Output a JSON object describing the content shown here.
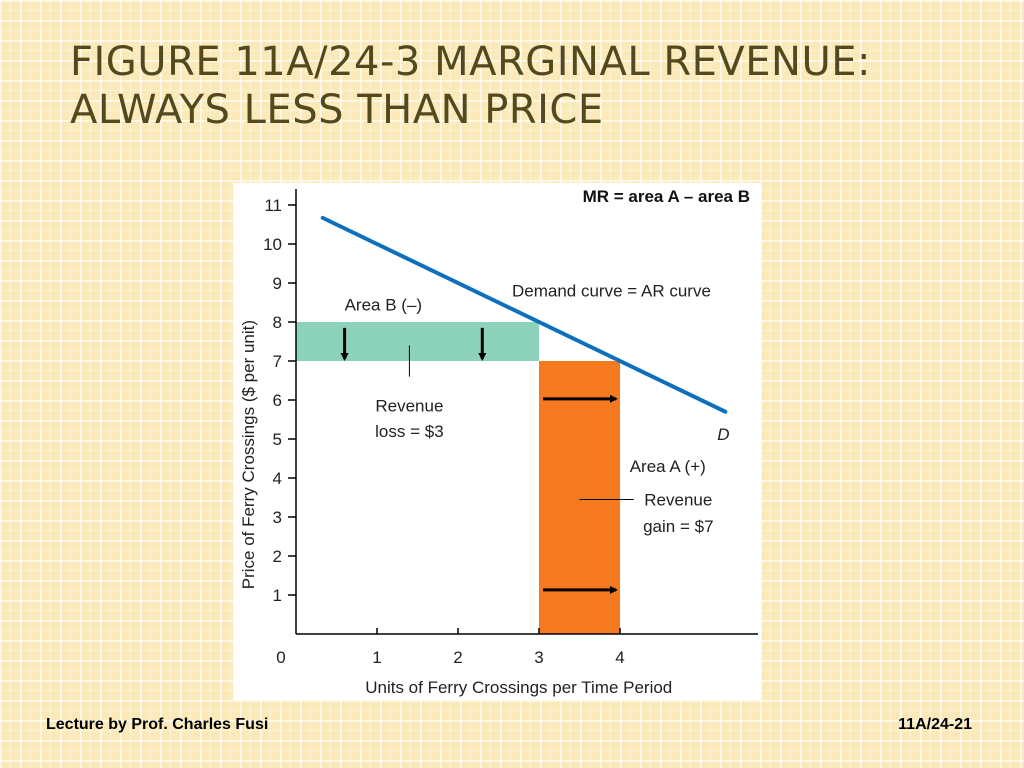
{
  "slide": {
    "title_line1": "FIGURE 11A/24-3  MARGINAL REVENUE:",
    "title_line2": "ALWAYS LESS THAN PRICE",
    "footer_left": "Lecture by Prof. Charles Fusi",
    "footer_right": "11A/24-21"
  },
  "chart_data": {
    "type": "line",
    "title": "MR = area A – area B",
    "xlabel": "Units of Ferry Crossings per Time Period",
    "ylabel": "Price of Ferry Crossings ($ per unit)",
    "xlim": [
      0,
      5.6
    ],
    "ylim": [
      0,
      11.5
    ],
    "x_ticks": [
      0,
      1,
      2,
      3,
      4
    ],
    "y_ticks": [
      1,
      2,
      3,
      4,
      5,
      6,
      7,
      8,
      9,
      10,
      11
    ],
    "grid": false,
    "series": [
      {
        "name": "Demand curve = AR curve",
        "end_label": "D",
        "color": "#0d6fbd",
        "x": [
          0.33,
          5.3
        ],
        "y": [
          10.67,
          5.7
        ]
      }
    ],
    "regions": [
      {
        "name": "Area B (–)",
        "x": [
          0,
          3
        ],
        "y": [
          7,
          8
        ],
        "color": "#8dd3bb",
        "note": "Revenue loss = $3"
      },
      {
        "name": "Area A (+)",
        "x": [
          3,
          4
        ],
        "y": [
          0,
          7
        ],
        "color": "#f4791f",
        "note": "Revenue gain = $7"
      }
    ],
    "annotations": [
      {
        "text": "Revenue",
        "text2": "loss = $3"
      },
      {
        "text": "Revenue",
        "text2": "gain = $7"
      }
    ]
  }
}
